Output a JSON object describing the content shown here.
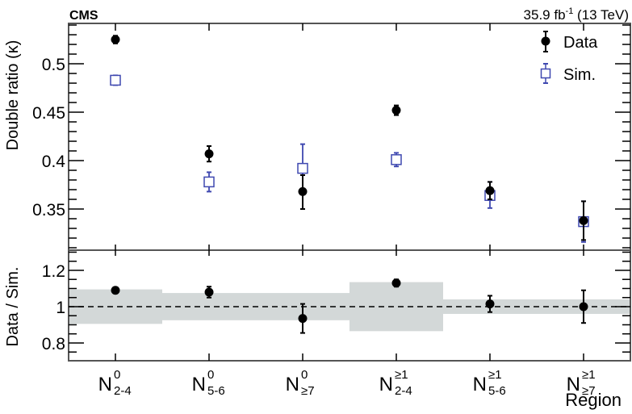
{
  "header": {
    "experiment": "CMS",
    "lumi": "35.9 fb",
    "lumi_sup": "-1",
    "energy": " (13 TeV)"
  },
  "legend": {
    "items": [
      {
        "label": "Data",
        "marker": "filled-circle",
        "color": "#000000"
      },
      {
        "label": "Sim.",
        "marker": "open-square",
        "color": "#3f48b0"
      }
    ]
  },
  "colors": {
    "data": "#000000",
    "sim": "#3f48b0",
    "band": "#d3d8d8",
    "axis": "#555555"
  },
  "chart_data": [
    {
      "type": "scatter",
      "title": "",
      "xlabel": "Region",
      "ylabel": "Double ratio (κ)",
      "ylim": [
        0.3075,
        0.5417
      ],
      "yticks": [
        0.35,
        0.4,
        0.45,
        0.5
      ],
      "ytick_labels": [
        "0.35",
        "0.4",
        "0.45",
        "0.5"
      ],
      "grid": false,
      "legend_position": "upper right",
      "categories": [
        "N^0_2-4",
        "N^0_5-6",
        "N^0_≥7",
        "N^≥1_2-4",
        "N^≥1_5-6",
        "N^≥1_≥7"
      ],
      "series": [
        {
          "name": "Data",
          "values": [
            0.525,
            0.407,
            0.368,
            0.452,
            0.369,
            0.338
          ],
          "err_up": [
            0.004,
            0.008,
            0.017,
            0.005,
            0.009,
            0.02
          ],
          "err_down": [
            0.004,
            0.008,
            0.018,
            0.005,
            0.009,
            0.02
          ]
        },
        {
          "name": "Sim.",
          "values": [
            0.483,
            0.378,
            0.392,
            0.401,
            0.364,
            0.337
          ],
          "err_up": [
            0.005,
            0.01,
            0.025,
            0.007,
            0.014,
            0.021
          ],
          "err_down": [
            0.005,
            0.01,
            0.025,
            0.007,
            0.013,
            0.021
          ]
        }
      ]
    },
    {
      "type": "scatter",
      "title": "",
      "xlabel": "Region",
      "ylabel": "Data / Sim.",
      "ylim": [
        0.702,
        1.311
      ],
      "yticks": [
        0.8,
        1.0,
        1.2
      ],
      "ytick_labels": [
        "0.8",
        "1",
        "1.2"
      ],
      "reference_line": 1.0,
      "grid": false,
      "categories": [
        "N^0_2-4",
        "N^0_5-6",
        "N^0_≥7",
        "N^≥1_2-4",
        "N^≥1_5-6",
        "N^≥1_≥7"
      ],
      "series": [
        {
          "name": "Data / Sim.",
          "values": [
            1.09,
            1.08,
            0.935,
            1.13,
            1.015,
            1.0
          ],
          "err_up": [
            0.01,
            0.03,
            0.08,
            0.02,
            0.045,
            0.09
          ],
          "err_down": [
            0.01,
            0.03,
            0.08,
            0.02,
            0.045,
            0.09
          ]
        }
      ],
      "band": {
        "name": "Sim. uncertainty",
        "half_width": [
          0.095,
          0.075,
          0.075,
          0.135,
          0.04,
          0.04
        ]
      }
    }
  ],
  "xaxis": {
    "label": "Region",
    "ticks": [
      {
        "base": "N",
        "sup": "0",
        "sub": "2-4"
      },
      {
        "base": "N",
        "sup": "0",
        "sub": "5-6"
      },
      {
        "base": "N",
        "sup": "0",
        "sub": "≥7"
      },
      {
        "base": "N",
        "sup": "≥1",
        "sub": "2-4"
      },
      {
        "base": "N",
        "sup": "≥1",
        "sub": "5-6"
      },
      {
        "base": "N",
        "sup": "≥1",
        "sub": "≥7"
      }
    ]
  }
}
